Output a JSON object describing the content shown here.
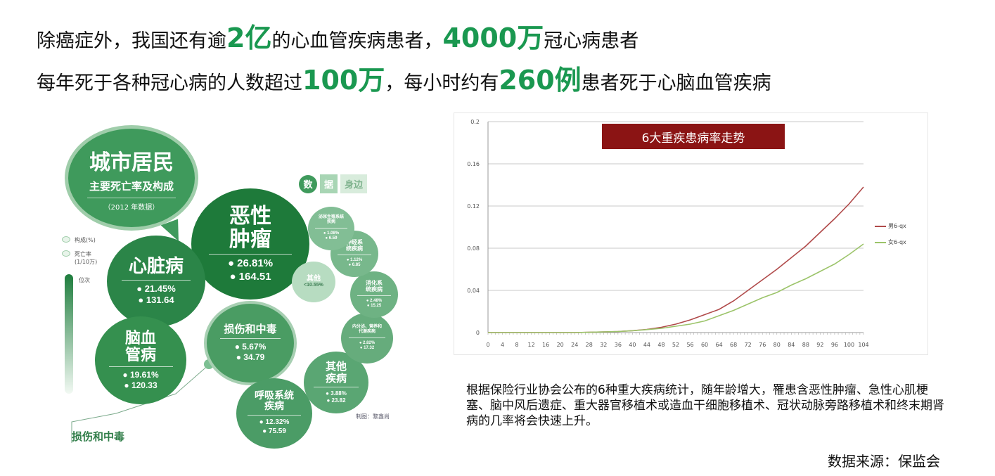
{
  "headline": {
    "line1": [
      {
        "text": "除癌症外，我国还有逾",
        "highlight": false
      },
      {
        "text": "2亿",
        "highlight": true
      },
      {
        "text": "的心血管疾病患者，",
        "highlight": false
      },
      {
        "text": "4000万",
        "highlight": true
      },
      {
        "text": "冠心病患者",
        "highlight": false
      }
    ],
    "line2": [
      {
        "text": "每年死于各种冠心病的人数超过",
        "highlight": false
      },
      {
        "text": "100万",
        "highlight": true
      },
      {
        "text": "，每小时约有",
        "highlight": false
      },
      {
        "text": "260例",
        "highlight": true
      },
      {
        "text": "患者死于心脑血管疾病",
        "highlight": false
      }
    ],
    "highlight_color": "#1a9850"
  },
  "infographic": {
    "title_main": "城市居民",
    "title_sub": "主要死亡率及构成",
    "title_year": "（2012 年数据）",
    "badge": [
      "数",
      "据",
      "身边"
    ],
    "legend": [
      {
        "label": "构成(%)"
      },
      {
        "label": "死亡率\n(1/10万)"
      },
      {
        "label": "位次"
      }
    ],
    "bubbles": [
      {
        "name": "恶性肿瘤",
        "share": "26.81%",
        "rate": "164.51"
      },
      {
        "name": "心脏病",
        "share": "21.45%",
        "rate": "131.64"
      },
      {
        "name": "脑血管病",
        "share": "19.61%",
        "rate": "120.33"
      },
      {
        "name": "呼吸系统疾病",
        "share": "12.32%",
        "rate": "75.59"
      },
      {
        "name": "损伤和中毒",
        "share": "5.67%",
        "rate": "34.79"
      },
      {
        "name": "其他疾病",
        "share": "3.88%",
        "rate": "23.82"
      },
      {
        "name": "内分泌、营养和代谢疾病",
        "share": "2.82%",
        "rate": "17.32"
      },
      {
        "name": "消化系统疾病",
        "share": "2.48%",
        "rate": "15.25"
      },
      {
        "name": "神经系统疾病",
        "share": "1.12%",
        "rate": "6.85"
      },
      {
        "name": "泌尿生殖系统疾病",
        "share": "1.08%",
        "rate": "6.59"
      },
      {
        "name": "其他",
        "share": "<10.55%",
        "rate": ""
      }
    ],
    "bottom_label": "损伤和中毒",
    "credit": "制图：黎鑫尚"
  },
  "chart_data": {
    "type": "line",
    "title": "6大重疾患病率走势",
    "xlabel": "",
    "ylabel": "",
    "x": [
      0,
      4,
      8,
      12,
      16,
      20,
      24,
      28,
      32,
      36,
      40,
      44,
      48,
      52,
      56,
      60,
      64,
      68,
      72,
      76,
      80,
      84,
      88,
      92,
      96,
      100,
      104
    ],
    "x_tick_labels": [
      "0",
      "4",
      "8",
      "12",
      "16",
      "20",
      "24",
      "28",
      "32",
      "36",
      "40",
      "44",
      "48",
      "52",
      "56",
      "60",
      "64",
      "68",
      "72",
      "76",
      "80",
      "84",
      "88",
      "92",
      "96",
      "100",
      "104"
    ],
    "y_ticks": [
      0,
      0.04,
      0.08,
      0.12,
      0.16,
      0.2
    ],
    "y_tick_labels": [
      "0",
      "0.04",
      "0.08",
      "0.12",
      "0.16",
      "0.2"
    ],
    "ylim": [
      0,
      0.2
    ],
    "grid": true,
    "legend_position": "right",
    "series": [
      {
        "name": "男6-qx",
        "color": "#b04a4a",
        "values": [
          0,
          0,
          0,
          0,
          0,
          0,
          0,
          0.0003,
          0.0006,
          0.001,
          0.0018,
          0.003,
          0.005,
          0.008,
          0.012,
          0.017,
          0.022,
          0.03,
          0.04,
          0.05,
          0.06,
          0.071,
          0.082,
          0.095,
          0.108,
          0.122,
          0.138
        ]
      },
      {
        "name": "女6-qx",
        "color": "#9cc46a",
        "values": [
          0,
          0,
          0,
          0,
          0,
          0,
          0,
          0.0003,
          0.0006,
          0.001,
          0.0017,
          0.0028,
          0.004,
          0.006,
          0.008,
          0.011,
          0.016,
          0.021,
          0.027,
          0.033,
          0.038,
          0.045,
          0.051,
          0.058,
          0.065,
          0.074,
          0.084
        ]
      }
    ]
  },
  "description": "根据保险行业协会公布的6种重大疾病统计，随年龄增大，罹患含恶性肿瘤、急性心肌梗塞、脑中风后遗症、重大器官移植术或造血干细胞移植术、冠状动脉旁路移植术和终末期肾病的几率将会快速上升。",
  "source": "数据来源：保监会"
}
